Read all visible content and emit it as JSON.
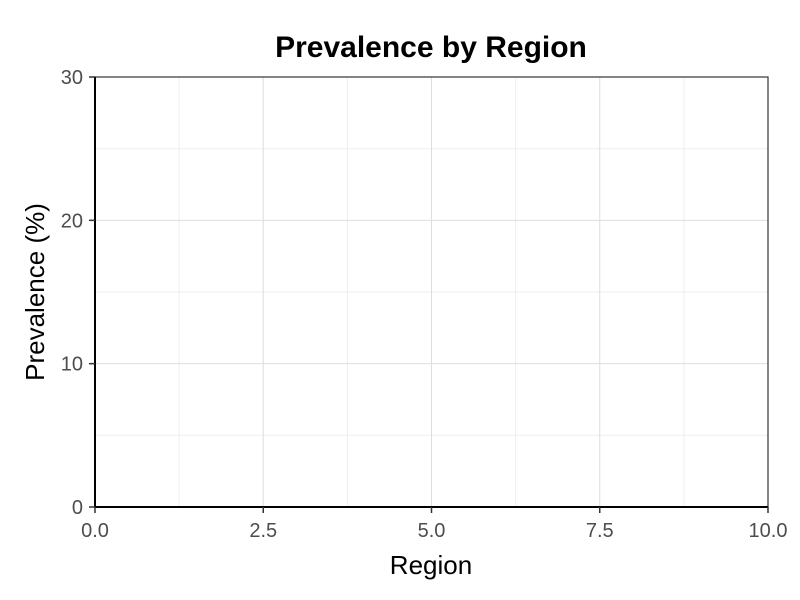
{
  "chart_data": {
    "type": "scatter",
    "title": "Prevalence by Region",
    "xlabel": "Region",
    "ylabel": "Prevalence (%)",
    "xlim": [
      0,
      10
    ],
    "ylim": [
      0,
      30
    ],
    "x_ticks": [
      0,
      2.5,
      5,
      7.5,
      10
    ],
    "x_tick_labels": [
      "0.0",
      "2.5",
      "5.0",
      "7.5",
      "10.0"
    ],
    "y_ticks": [
      0,
      10,
      20,
      30
    ],
    "y_tick_labels": [
      "0",
      "10",
      "20",
      "30"
    ],
    "x_minor_ticks": [
      1.25,
      3.75,
      6.25,
      8.75
    ],
    "y_minor_ticks": [
      5,
      15,
      25
    ],
    "grid": true,
    "series": [],
    "colors": {
      "major_grid": "#dedede",
      "minor_grid": "#efefef",
      "tick_label": "#4d4d4d"
    }
  }
}
